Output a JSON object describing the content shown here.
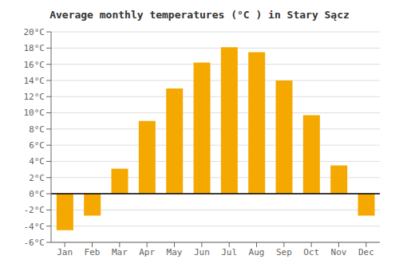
{
  "chart_data": {
    "type": "bar",
    "title": "Average monthly temperatures (°C ) in Stary Sącz",
    "categories": [
      "Jan",
      "Feb",
      "Mar",
      "Apr",
      "May",
      "Jun",
      "Jul",
      "Aug",
      "Sep",
      "Oct",
      "Nov",
      "Dec"
    ],
    "values": [
      -4.5,
      -2.7,
      3.1,
      9.0,
      13.0,
      16.2,
      18.1,
      17.5,
      14.0,
      9.7,
      3.5,
      -2.7
    ],
    "color": "#F5A800",
    "ylim": [
      -6,
      20
    ],
    "yticks": [
      {
        "value": -6,
        "label": "-6°C"
      },
      {
        "value": -4,
        "label": "-4°C"
      },
      {
        "value": -2,
        "label": "-2°C"
      },
      {
        "value": 0,
        "label": "0°C"
      },
      {
        "value": 2,
        "label": "2°C"
      },
      {
        "value": 4,
        "label": "4°C"
      },
      {
        "value": 6,
        "label": "6°C"
      },
      {
        "value": 8,
        "label": "8°C"
      },
      {
        "value": 10,
        "label": "10°C"
      },
      {
        "value": 12,
        "label": "12°C"
      },
      {
        "value": 14,
        "label": "14°C"
      },
      {
        "value": 16,
        "label": "16°C"
      },
      {
        "value": 18,
        "label": "18°C"
      },
      {
        "value": 20,
        "label": "20°C"
      }
    ],
    "grid": true
  }
}
